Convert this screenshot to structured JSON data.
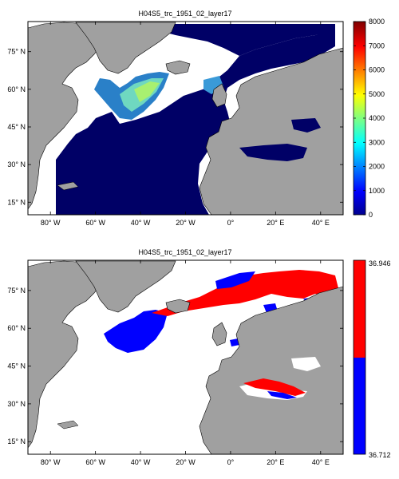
{
  "chart_data": [
    {
      "type": "heatmap",
      "title": "H04S5_trc_1951_02_layer17",
      "xlim": [
        -90,
        50
      ],
      "ylim": [
        10,
        87
      ],
      "x_ticks": [
        {
          "value": -80,
          "label": "80° W"
        },
        {
          "value": -60,
          "label": "60° W"
        },
        {
          "value": -40,
          "label": "40° W"
        },
        {
          "value": -20,
          "label": "20° W"
        },
        {
          "value": 0,
          "label": "0°"
        },
        {
          "value": 20,
          "label": "20° E"
        },
        {
          "value": 40,
          "label": "40° E"
        }
      ],
      "y_ticks": [
        {
          "value": 15,
          "label": "15° N"
        },
        {
          "value": 30,
          "label": "30° N"
        },
        {
          "value": 45,
          "label": "45° N"
        },
        {
          "value": 60,
          "label": "60° N"
        },
        {
          "value": 75,
          "label": "75° N"
        }
      ],
      "colorbar": {
        "colormap": "jet",
        "range": [
          0,
          8000
        ],
        "ticks": [
          0,
          1000,
          2000,
          3000,
          4000,
          5000,
          6000,
          7000,
          8000
        ]
      },
      "colors": {
        "land": "#a0a0a0",
        "ocean_low": "#000066",
        "no_data": "#ffffff"
      }
    },
    {
      "type": "heatmap",
      "title": "H04S5_trc_1951_02_layer17",
      "xlim": [
        -90,
        50
      ],
      "ylim": [
        10,
        87
      ],
      "x_ticks": [
        {
          "value": -80,
          "label": "80° W"
        },
        {
          "value": -60,
          "label": "60° W"
        },
        {
          "value": -40,
          "label": "40° W"
        },
        {
          "value": -20,
          "label": "20° W"
        },
        {
          "value": 0,
          "label": "0°"
        },
        {
          "value": 20,
          "label": "20° E"
        },
        {
          "value": 40,
          "label": "40° E"
        }
      ],
      "y_ticks": [
        {
          "value": 15,
          "label": "15° N"
        },
        {
          "value": 30,
          "label": "30° N"
        },
        {
          "value": 45,
          "label": "45° N"
        },
        {
          "value": 60,
          "label": "60° N"
        },
        {
          "value": 75,
          "label": "75° N"
        }
      ],
      "colorbar": {
        "colormap": "two-color",
        "range": [
          36.712,
          36.946
        ],
        "labels": [
          "36.946",
          "36.712"
        ],
        "colors": [
          "#ff0000",
          "#0000ff"
        ]
      },
      "colors": {
        "land": "#a0a0a0",
        "high": "#ff0000",
        "low": "#0000ff",
        "no_data": "#ffffff"
      }
    }
  ]
}
